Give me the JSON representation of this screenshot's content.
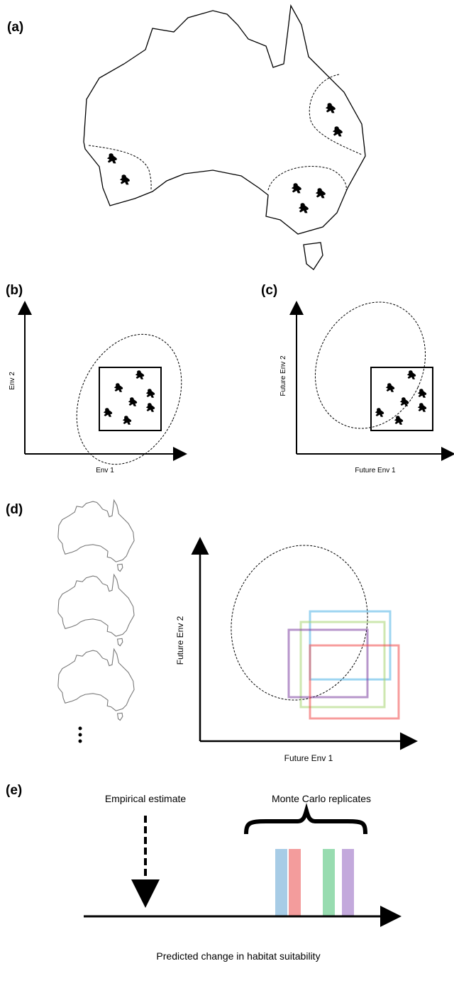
{
  "panels": [
    {
      "label": "(a)"
    },
    {
      "label": "(b)",
      "x_axis": "Env 1",
      "y_axis": "Env 2"
    },
    {
      "label": "(c)",
      "x_axis": "Future Env 1",
      "y_axis": "Future Env 2"
    },
    {
      "label": "(d)",
      "x_axis": "Future Env 1",
      "y_axis": "Future Env 2"
    },
    {
      "label": "(e)",
      "left_note": "Empirical estimate",
      "right_note": "Monte Carlo replicates",
      "x_axis": "Predicted change in habitat suitability"
    }
  ]
}
